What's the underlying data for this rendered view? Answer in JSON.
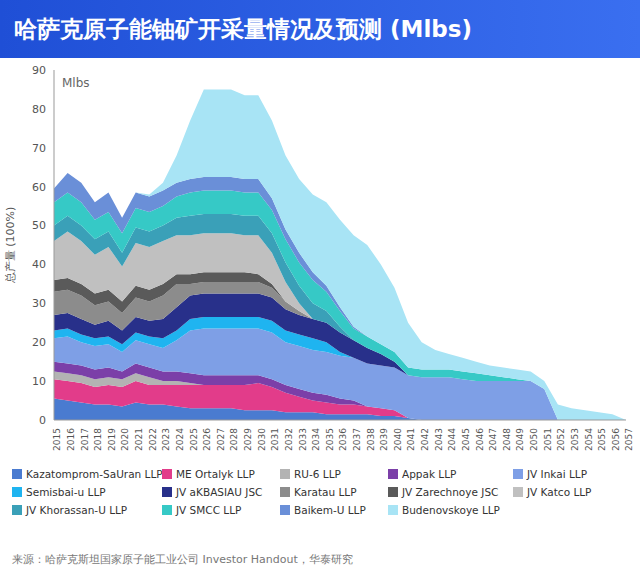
{
  "chart_data": {
    "type": "area",
    "stacked": true,
    "title": "哈萨克原子能铀矿开采量情况及预测 (Mlbs)",
    "y_label": "总产量 (100%)",
    "annotation": "Mlbs",
    "source": "来源：哈萨克斯坦国家原子能工业公司 Investor Handout，华泰研究",
    "grid": false,
    "legend": "bottom",
    "categories": [
      "2015",
      "2016",
      "2017",
      "2018",
      "2019",
      "2020",
      "2021",
      "2022",
      "2023",
      "2024",
      "2025",
      "2026",
      "2027",
      "2028",
      "2029",
      "2030",
      "2031",
      "2032",
      "2033",
      "2034",
      "2035",
      "2036",
      "2037",
      "2038",
      "2039",
      "2040",
      "2041",
      "2042",
      "2043",
      "2044",
      "2045",
      "2046",
      "2047",
      "2048",
      "2049",
      "2050",
      "2051",
      "2052",
      "2053",
      "2054",
      "2055",
      "2056",
      "2057"
    ],
    "ylim": [
      0,
      90
    ],
    "yticks": [
      0,
      10,
      20,
      30,
      40,
      50,
      60,
      70,
      80,
      90
    ],
    "series": [
      {
        "name": "Kazatomprom-SaUran LLP",
        "color": "#4a7bd0",
        "values": [
          5.5,
          5,
          4.5,
          4,
          4,
          3.5,
          4.5,
          4,
          4,
          3.5,
          3,
          3,
          3,
          3,
          2.5,
          2.5,
          2.5,
          2,
          2,
          2,
          1.5,
          1.5,
          1.5,
          1.5,
          1,
          1,
          0.5,
          0,
          0,
          0,
          0,
          0,
          0,
          0,
          0,
          0,
          0,
          0,
          0,
          0,
          0,
          0,
          0
        ]
      },
      {
        "name": "ME Ortalyk LLP",
        "color": "#e23c8a",
        "values": [
          5,
          5,
          5,
          4.5,
          5,
          5,
          5.5,
          5,
          5,
          5.5,
          6,
          6,
          6,
          6,
          6.5,
          7,
          6,
          5,
          4,
          3,
          3,
          2.5,
          2.5,
          2,
          2,
          1.5,
          0,
          0,
          0,
          0,
          0,
          0,
          0,
          0,
          0,
          0,
          0,
          0,
          0,
          0,
          0,
          0,
          0
        ]
      },
      {
        "name": "RU-6 LLP",
        "color": "#b3b3b3",
        "values": [
          2,
          2,
          2,
          2,
          2,
          2,
          2,
          2,
          1,
          1,
          0.5,
          0,
          0,
          0,
          0,
          0,
          0,
          0,
          0,
          0,
          0,
          0,
          0,
          0,
          0,
          0,
          0,
          0,
          0,
          0,
          0,
          0,
          0,
          0,
          0,
          0,
          0,
          0,
          0,
          0,
          0,
          0,
          0
        ]
      },
      {
        "name": "Appak LLP",
        "color": "#7b3fa8",
        "values": [
          2.5,
          2.5,
          2.5,
          2.5,
          2.5,
          2,
          2.5,
          2.5,
          2.5,
          2.5,
          2.5,
          2.5,
          2.5,
          2.5,
          2.5,
          2,
          2,
          2,
          2,
          2,
          2,
          1.5,
          1,
          0,
          0,
          0,
          0,
          0,
          0,
          0,
          0,
          0,
          0,
          0,
          0,
          0,
          0,
          0,
          0,
          0,
          0,
          0,
          0
        ]
      },
      {
        "name": "JV Inkai LLP",
        "color": "#7e9fe6",
        "values": [
          6,
          7,
          6,
          6,
          6,
          5,
          6,
          6,
          6,
          8,
          11,
          12,
          12,
          12,
          12,
          12,
          12,
          11,
          11,
          11,
          11,
          11,
          11,
          11,
          11,
          11,
          11,
          11,
          11,
          11,
          10.5,
          10,
          10,
          10,
          10,
          10,
          8,
          0,
          0,
          0,
          0,
          0,
          0
        ]
      },
      {
        "name": "Semisbai-u LLP",
        "color": "#1fb4f0",
        "values": [
          2,
          2,
          2,
          2,
          2,
          2,
          2,
          2,
          2.5,
          2.5,
          3,
          3,
          3,
          3,
          3,
          3,
          3,
          3,
          3,
          3,
          2.5,
          1,
          0,
          0,
          0,
          0,
          0,
          0,
          0,
          0,
          0,
          0,
          0,
          0,
          0,
          0,
          0,
          0,
          0,
          0,
          0,
          0,
          0
        ]
      },
      {
        "name": "JV aKBASIAU JSC",
        "color": "#28308a",
        "values": [
          4,
          4,
          4,
          3.5,
          4,
          3.5,
          4,
          4,
          5,
          6,
          6,
          6,
          6,
          6,
          6,
          6,
          6,
          5.5,
          5,
          5,
          5,
          5,
          4.5,
          4,
          3,
          1.5,
          0,
          0,
          0,
          0,
          0,
          0,
          0,
          0,
          0,
          0,
          0,
          0,
          0,
          0,
          0,
          0,
          0
        ]
      },
      {
        "name": "Karatau LLP",
        "color": "#8c8c8c",
        "values": [
          6,
          6,
          6,
          5,
          5,
          4.5,
          5,
          5,
          6,
          6,
          3,
          3,
          3,
          3,
          3,
          3,
          2.5,
          2,
          1,
          0,
          0,
          0,
          0,
          0,
          0,
          0,
          0,
          0,
          0,
          0,
          0,
          0,
          0,
          0,
          0,
          0,
          0,
          0,
          0,
          0,
          0,
          0,
          0
        ]
      },
      {
        "name": "JV Zarechnoye JSC",
        "color": "#5a5a5a",
        "values": [
          3,
          3,
          3,
          3,
          3,
          3,
          3,
          3,
          3,
          2.5,
          2.5,
          2.5,
          2.5,
          2.5,
          2.5,
          2,
          1,
          0,
          0,
          0,
          0,
          0,
          0,
          0,
          0,
          0,
          0,
          0,
          0,
          0,
          0,
          0,
          0,
          0,
          0,
          0,
          0,
          0,
          0,
          0,
          0,
          0,
          0
        ]
      },
      {
        "name": "JV Katco LLP",
        "color": "#c0c0c0",
        "values": [
          10,
          12,
          11,
          10,
          11,
          9,
          11,
          11,
          11,
          10,
          10,
          10,
          10,
          10,
          9.5,
          10,
          8,
          5,
          2,
          0,
          0,
          0,
          0,
          0,
          0,
          0,
          0,
          0,
          0,
          0,
          0,
          0,
          0,
          0,
          0,
          0,
          0,
          0,
          0,
          0,
          0,
          0,
          0
        ]
      },
      {
        "name": "JV Khorassan-U LLP",
        "color": "#3aa0b8",
        "values": [
          4,
          4,
          4,
          4,
          4,
          3.5,
          4,
          4,
          4,
          4.5,
          5,
          5,
          5,
          5,
          5,
          5,
          5,
          5,
          4.5,
          4,
          3,
          1.5,
          0,
          0,
          0,
          0,
          0,
          0,
          0,
          0,
          0,
          0,
          0,
          0,
          0,
          0,
          0,
          0,
          0,
          0,
          0,
          0,
          0
        ]
      },
      {
        "name": "JV SMCC LLP",
        "color": "#36c9c6",
        "values": [
          6,
          6,
          6,
          5,
          5,
          5,
          5,
          5,
          5,
          5.5,
          6,
          6,
          6,
          6,
          6,
          6,
          6,
          6,
          6,
          6,
          5,
          4,
          3,
          3,
          2.5,
          2.5,
          2,
          2,
          2,
          2,
          2,
          2,
          1.5,
          1,
          0.5,
          0,
          0,
          0,
          0,
          0,
          0,
          0,
          0
        ]
      },
      {
        "name": "Baikem-U LLP",
        "color": "#6a8fd8",
        "values": [
          3.5,
          5,
          5,
          4.5,
          5,
          4,
          4,
          4,
          4,
          3.5,
          3.5,
          3.5,
          3.5,
          3.5,
          3.5,
          3.5,
          3,
          2.5,
          2.5,
          2,
          1.5,
          1,
          0.5,
          0,
          0,
          0,
          0,
          0,
          0,
          0,
          0,
          0,
          0,
          0,
          0,
          0,
          0,
          0,
          0,
          0,
          0,
          0,
          0
        ]
      },
      {
        "name": "Budenovskoye LLP",
        "color": "#a8e4f5",
        "values": [
          0,
          0,
          0,
          0,
          0,
          0,
          0,
          0.5,
          2,
          7,
          15,
          22.5,
          22.5,
          22.5,
          21.5,
          21.5,
          20,
          19,
          19,
          20,
          21.5,
          22.5,
          23.5,
          23.5,
          20.5,
          16.5,
          11.5,
          7,
          5,
          4,
          3.5,
          3,
          2.5,
          2.5,
          2.5,
          2.5,
          2,
          4,
          3,
          2.5,
          2,
          1.5,
          0
        ]
      }
    ]
  }
}
